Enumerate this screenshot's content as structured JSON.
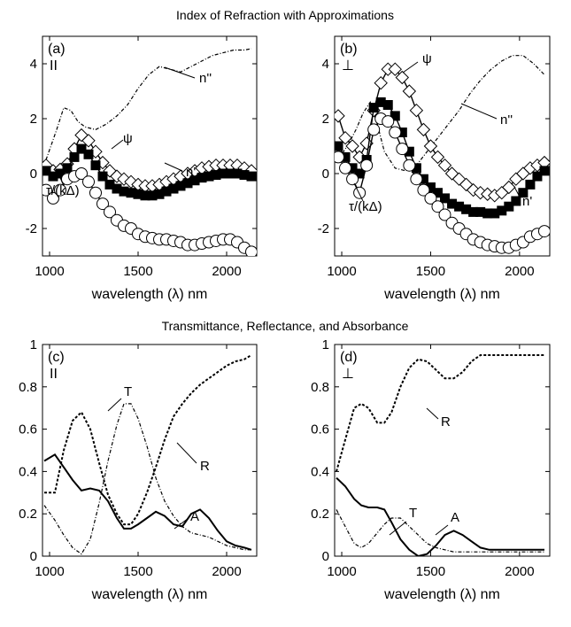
{
  "section_titles": [
    "Index of Refraction with Approximations",
    "Transmittance, Reflectance, and Absorbance"
  ],
  "chart_data": [
    {
      "type": "line",
      "panel": "(a)",
      "polarization": "II",
      "xlabel": "wavelength (λ) nm",
      "xlim": [
        960,
        2170
      ],
      "ylim": [
        -3,
        5
      ],
      "xticks": [
        1000,
        1500,
        2000
      ],
      "yticks": [
        -2,
        0,
        2,
        4
      ],
      "series": [
        {
          "name": "n''",
          "style": "dashdot",
          "x": [
            980,
            1040,
            1080,
            1120,
            1160,
            1200,
            1260,
            1320,
            1380,
            1440,
            1500,
            1560,
            1620,
            1680,
            1740,
            1800,
            1860,
            1920,
            1980,
            2040,
            2100,
            2140
          ],
          "y": [
            0.5,
            1.6,
            2.4,
            2.3,
            1.9,
            1.7,
            1.6,
            1.8,
            2.1,
            2.5,
            3.1,
            3.6,
            3.9,
            3.8,
            3.7,
            3.9,
            4.1,
            4.3,
            4.4,
            4.5,
            4.5,
            4.55
          ]
        },
        {
          "name": "ψ",
          "marker": "diamond",
          "x": [
            980,
            1020,
            1060,
            1100,
            1140,
            1180,
            1220,
            1260,
            1300,
            1340,
            1380,
            1420,
            1460,
            1500,
            1540,
            1580,
            1620,
            1660,
            1700,
            1740,
            1780,
            1820,
            1860,
            1900,
            1940,
            1980,
            2020,
            2060,
            2100,
            2140
          ],
          "y": [
            0.3,
            0.1,
            0.15,
            0.35,
            0.9,
            1.4,
            1.2,
            0.8,
            0.4,
            0.1,
            -0.1,
            -0.2,
            -0.3,
            -0.4,
            -0.45,
            -0.45,
            -0.4,
            -0.3,
            -0.2,
            -0.1,
            0.0,
            0.1,
            0.2,
            0.25,
            0.3,
            0.3,
            0.3,
            0.3,
            0.2,
            0.1
          ]
        },
        {
          "name": "n'",
          "marker": "square",
          "x": [
            980,
            1020,
            1060,
            1100,
            1140,
            1180,
            1220,
            1260,
            1300,
            1340,
            1380,
            1420,
            1460,
            1500,
            1540,
            1580,
            1620,
            1660,
            1700,
            1740,
            1780,
            1820,
            1860,
            1900,
            1940,
            1980,
            2020,
            2060,
            2100,
            2140
          ],
          "y": [
            0.1,
            -0.1,
            0.0,
            0.2,
            0.6,
            0.9,
            0.7,
            0.3,
            -0.1,
            -0.4,
            -0.55,
            -0.65,
            -0.7,
            -0.75,
            -0.8,
            -0.8,
            -0.75,
            -0.65,
            -0.55,
            -0.45,
            -0.35,
            -0.25,
            -0.15,
            -0.1,
            -0.05,
            0.0,
            0.0,
            0.0,
            -0.05,
            -0.1
          ]
        },
        {
          "name": "τ/(kΔ)",
          "marker": "circle",
          "x": [
            980,
            1020,
            1060,
            1100,
            1140,
            1180,
            1220,
            1260,
            1300,
            1340,
            1380,
            1420,
            1460,
            1500,
            1540,
            1580,
            1620,
            1660,
            1700,
            1740,
            1780,
            1820,
            1860,
            1900,
            1940,
            1980,
            2020,
            2060,
            2100,
            2140
          ],
          "y": [
            -0.6,
            -0.9,
            -0.6,
            -0.2,
            -0.1,
            0.0,
            -0.3,
            -0.7,
            -1.1,
            -1.4,
            -1.7,
            -1.9,
            -2.0,
            -2.2,
            -2.3,
            -2.35,
            -2.4,
            -2.4,
            -2.45,
            -2.5,
            -2.6,
            -2.6,
            -2.55,
            -2.5,
            -2.45,
            -2.4,
            -2.4,
            -2.5,
            -2.7,
            -2.85
          ]
        }
      ],
      "annotations": [
        "n''",
        "ψ",
        "n'",
        "τ/(kΔ)"
      ]
    },
    {
      "type": "line",
      "panel": "(b)",
      "polarization": "⊥",
      "xlabel": "wavelength (λ) nm",
      "xlim": [
        960,
        2170
      ],
      "ylim": [
        -3,
        5
      ],
      "xticks": [
        1000,
        1500,
        2000
      ],
      "yticks": [
        -2,
        0,
        2,
        4
      ],
      "series": [
        {
          "name": "n''",
          "style": "dashdot",
          "x": [
            980,
            1040,
            1080,
            1120,
            1160,
            1200,
            1240,
            1300,
            1360,
            1420,
            1480,
            1540,
            1600,
            1660,
            1720,
            1780,
            1840,
            1900,
            1960,
            2020,
            2080,
            2140
          ],
          "y": [
            0.5,
            1.1,
            1.6,
            2.2,
            2.6,
            1.8,
            0.8,
            0.2,
            0.1,
            0.3,
            0.8,
            1.3,
            1.8,
            2.3,
            2.9,
            3.4,
            3.8,
            4.1,
            4.3,
            4.3,
            4.0,
            3.6
          ]
        },
        {
          "name": "ψ",
          "marker": "diamond",
          "x": [
            980,
            1020,
            1060,
            1100,
            1140,
            1180,
            1220,
            1260,
            1300,
            1340,
            1380,
            1420,
            1460,
            1500,
            1540,
            1580,
            1620,
            1660,
            1700,
            1740,
            1780,
            1820,
            1860,
            1900,
            1940,
            1980,
            2020,
            2060,
            2100,
            2140
          ],
          "y": [
            2.1,
            1.3,
            1.0,
            0.6,
            1.1,
            2.3,
            3.3,
            3.8,
            3.8,
            3.5,
            3.0,
            2.3,
            1.6,
            1.0,
            0.6,
            0.3,
            0.0,
            -0.2,
            -0.4,
            -0.6,
            -0.7,
            -0.75,
            -0.8,
            -0.7,
            -0.5,
            -0.2,
            0.0,
            0.2,
            0.3,
            0.4
          ]
        },
        {
          "name": "n'",
          "marker": "square",
          "x": [
            980,
            1020,
            1060,
            1100,
            1140,
            1180,
            1220,
            1260,
            1300,
            1340,
            1380,
            1420,
            1460,
            1500,
            1540,
            1580,
            1620,
            1660,
            1700,
            1740,
            1780,
            1820,
            1860,
            1900,
            1940,
            1980,
            2020,
            2060,
            2100,
            2140
          ],
          "y": [
            1.0,
            0.6,
            0.2,
            0.0,
            0.5,
            2.4,
            2.6,
            2.5,
            2.1,
            1.5,
            0.8,
            0.2,
            -0.2,
            -0.5,
            -0.7,
            -0.9,
            -1.1,
            -1.2,
            -1.3,
            -1.4,
            -1.4,
            -1.45,
            -1.45,
            -1.35,
            -1.2,
            -1.0,
            -0.7,
            -0.4,
            -0.1,
            0.1
          ]
        },
        {
          "name": "τ/(kΔ)",
          "marker": "circle",
          "x": [
            980,
            1020,
            1060,
            1100,
            1140,
            1180,
            1220,
            1260,
            1300,
            1340,
            1380,
            1420,
            1460,
            1500,
            1540,
            1580,
            1620,
            1660,
            1700,
            1740,
            1780,
            1820,
            1860,
            1900,
            1940,
            1980,
            2020,
            2060,
            2100,
            2140
          ],
          "y": [
            0.6,
            0.2,
            -0.2,
            -0.7,
            0.3,
            1.6,
            2.0,
            1.9,
            1.5,
            0.9,
            0.3,
            -0.2,
            -0.6,
            -0.9,
            -1.2,
            -1.5,
            -1.8,
            -2.0,
            -2.2,
            -2.4,
            -2.5,
            -2.6,
            -2.65,
            -2.7,
            -2.7,
            -2.6,
            -2.5,
            -2.3,
            -2.2,
            -2.1
          ]
        }
      ],
      "annotations": [
        "n''",
        "ψ",
        "n'",
        "τ/(kΔ)"
      ]
    },
    {
      "type": "line",
      "panel": "(c)",
      "polarization": "II",
      "xlabel": "wavelength (λ) nm",
      "xlim": [
        960,
        2170
      ],
      "ylim": [
        0,
        1
      ],
      "xticks": [
        1000,
        1500,
        2000
      ],
      "yticks": [
        0,
        0.2,
        0.4,
        0.6,
        0.8,
        1
      ],
      "series": [
        {
          "name": "T",
          "style": "dashdot",
          "x": [
            970,
            1030,
            1080,
            1130,
            1180,
            1230,
            1280,
            1330,
            1380,
            1420,
            1460,
            1500,
            1550,
            1600,
            1650,
            1700,
            1750,
            1800,
            1850,
            1900,
            1950,
            2000,
            2050,
            2100,
            2140
          ],
          "y": [
            0.24,
            0.17,
            0.1,
            0.04,
            0.01,
            0.08,
            0.25,
            0.45,
            0.62,
            0.72,
            0.72,
            0.65,
            0.52,
            0.37,
            0.26,
            0.19,
            0.14,
            0.11,
            0.1,
            0.09,
            0.07,
            0.05,
            0.04,
            0.03,
            0.03
          ]
        },
        {
          "name": "R",
          "style": "dotted",
          "x": [
            970,
            1030,
            1080,
            1130,
            1180,
            1230,
            1280,
            1330,
            1380,
            1420,
            1460,
            1500,
            1550,
            1600,
            1650,
            1700,
            1750,
            1800,
            1850,
            1900,
            1950,
            2000,
            2050,
            2100,
            2140
          ],
          "y": [
            0.3,
            0.3,
            0.5,
            0.64,
            0.68,
            0.6,
            0.44,
            0.29,
            0.2,
            0.15,
            0.15,
            0.2,
            0.3,
            0.42,
            0.55,
            0.66,
            0.72,
            0.77,
            0.81,
            0.84,
            0.87,
            0.9,
            0.92,
            0.93,
            0.95
          ]
        },
        {
          "name": "A",
          "style": "solid",
          "x": [
            970,
            1030,
            1080,
            1130,
            1180,
            1230,
            1280,
            1330,
            1380,
            1420,
            1460,
            1500,
            1550,
            1600,
            1650,
            1700,
            1750,
            1800,
            1850,
            1900,
            1950,
            2000,
            2050,
            2100,
            2140
          ],
          "y": [
            0.45,
            0.48,
            0.42,
            0.36,
            0.31,
            0.32,
            0.31,
            0.26,
            0.18,
            0.13,
            0.13,
            0.15,
            0.18,
            0.21,
            0.19,
            0.15,
            0.14,
            0.2,
            0.22,
            0.18,
            0.12,
            0.07,
            0.05,
            0.04,
            0.03
          ]
        }
      ],
      "annotations": [
        "T",
        "R",
        "A"
      ]
    },
    {
      "type": "line",
      "panel": "(d)",
      "polarization": "⊥",
      "xlabel": "wavelength (λ) nm",
      "xlim": [
        960,
        2170
      ],
      "ylim": [
        0,
        1
      ],
      "xticks": [
        1000,
        1500,
        2000
      ],
      "yticks": [
        0,
        0.2,
        0.4,
        0.6,
        0.8,
        1
      ],
      "series": [
        {
          "name": "R",
          "style": "dotted",
          "x": [
            970,
            1020,
            1070,
            1110,
            1150,
            1200,
            1240,
            1280,
            1330,
            1380,
            1430,
            1480,
            1530,
            1580,
            1630,
            1680,
            1730,
            1780,
            1830,
            1880,
            1950,
            2050,
            2140
          ],
          "y": [
            0.4,
            0.55,
            0.7,
            0.72,
            0.7,
            0.63,
            0.63,
            0.68,
            0.8,
            0.89,
            0.93,
            0.92,
            0.88,
            0.84,
            0.84,
            0.87,
            0.92,
            0.95,
            0.95,
            0.95,
            0.95,
            0.95,
            0.95
          ]
        },
        {
          "name": "T",
          "style": "dashdot",
          "x": [
            970,
            1020,
            1070,
            1110,
            1150,
            1200,
            1240,
            1280,
            1330,
            1380,
            1430,
            1480,
            1530,
            1580,
            1630,
            1680,
            1730,
            1780,
            1830,
            1880,
            1950,
            2050,
            2140
          ],
          "y": [
            0.22,
            0.14,
            0.06,
            0.04,
            0.06,
            0.11,
            0.15,
            0.18,
            0.18,
            0.14,
            0.1,
            0.06,
            0.04,
            0.03,
            0.02,
            0.02,
            0.02,
            0.02,
            0.02,
            0.02,
            0.02,
            0.02,
            0.02
          ]
        },
        {
          "name": "A",
          "style": "solid",
          "x": [
            970,
            1020,
            1070,
            1110,
            1150,
            1200,
            1240,
            1280,
            1330,
            1380,
            1430,
            1480,
            1530,
            1580,
            1630,
            1680,
            1730,
            1780,
            1830,
            1880,
            1950,
            2050,
            2140
          ],
          "y": [
            0.37,
            0.33,
            0.27,
            0.24,
            0.23,
            0.23,
            0.22,
            0.16,
            0.08,
            0.03,
            0.0,
            0.01,
            0.05,
            0.1,
            0.12,
            0.1,
            0.07,
            0.04,
            0.03,
            0.03,
            0.03,
            0.03,
            0.03
          ]
        }
      ],
      "annotations": [
        "R",
        "T",
        "A"
      ]
    }
  ]
}
